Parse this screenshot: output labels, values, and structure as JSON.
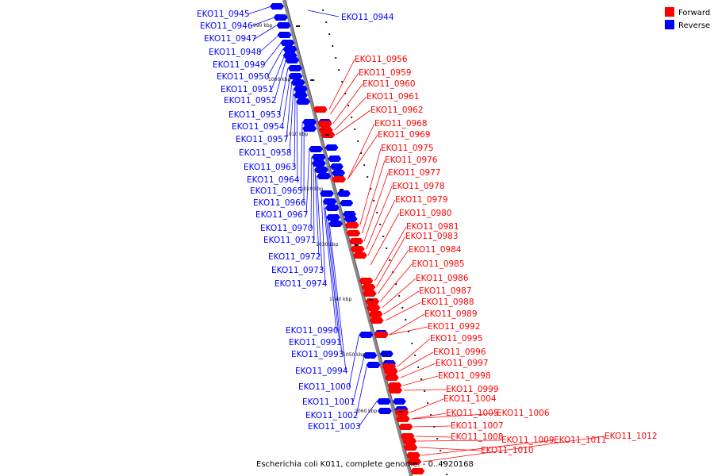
{
  "caption": "Escherichia coli K011, complete genome. - 0..4920168",
  "legend": [
    {
      "label": "Forward",
      "color": "#ff0000"
    },
    {
      "label": "Reverse",
      "color": "#0000ff"
    }
  ],
  "ticks": [
    "990 kbp",
    "1000 kbp",
    "1010 kbp",
    "1020 kbp",
    "1030 kbp",
    "1040 kbp",
    "1050 kbp",
    "1060 kbp"
  ],
  "reverse_labels": [
    "EKO11_0945",
    "EKO11_0946",
    "EKO11_0947",
    "EKO11_0948",
    "EKO11_0949",
    "EKO11_0950",
    "EKO11_0951",
    "EKO11_0952",
    "EKO11_0953",
    "EKO11_0954",
    "EKO11_0957",
    "EKO11_0958",
    "EKO11_0963",
    "EKO11_0964",
    "EKO11_0965",
    "EKO11_0966",
    "EKO11_0967",
    "EKO11_0970",
    "EKO11_0971",
    "EKO11_0972",
    "EKO11_0973",
    "EKO11_0974",
    "EKO11_0990",
    "EKO11_0991",
    "EKO11_0993",
    "EKO11_0994",
    "EKO11_1000",
    "EKO11_1001",
    "EKO11_1002",
    "EKO11_1003"
  ],
  "reverse_top_right_label": "EKO11_0944",
  "forward_labels": [
    "EKO11_0956",
    "EKO11_0959",
    "EKO11_0960",
    "EKO11_0961",
    "EKO11_0962",
    "EKO11_0968",
    "EKO11_0969",
    "EKO11_0975",
    "EKO11_0976",
    "EKO11_0977",
    "EKO11_0978",
    "EKO11_0979",
    "EKO11_0980",
    "EKO11_0981",
    "EKO11_0983",
    "EKO11_0984",
    "EKO11_0985",
    "EKO11_0986",
    "EKO11_0987",
    "EKO11_0988",
    "EKO11_0989",
    "EKO11_0992",
    "EKO11_0995",
    "EKO11_0996",
    "EKO11_0997",
    "EKO11_0998",
    "EKO11_0999",
    "EKO11_1004",
    "EKO11_1005",
    "EKO11_1006",
    "EKO11_1007",
    "EKO11_1008",
    "EKO11_1009",
    "EKO11_1010",
    "EKO11_1011",
    "EKO11_1012"
  ]
}
